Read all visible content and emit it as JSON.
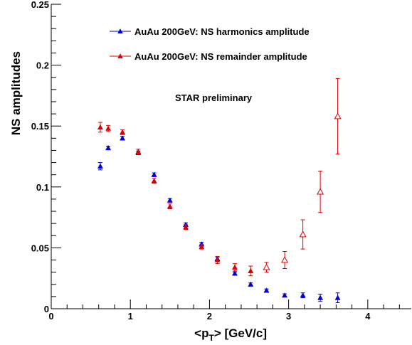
{
  "chart_data": {
    "type": "scatter",
    "xlabel": {
      "prefix": "<p",
      "sub": "T",
      "suffix": "> [GeV/c]"
    },
    "ylabel": "NS amplitudes",
    "xlim": [
      0,
      4.55
    ],
    "ylim": [
      0,
      0.25
    ],
    "x_ticks": [
      0,
      1,
      2,
      3,
      4
    ],
    "y_ticks": [
      0,
      0.05,
      0.1,
      0.15,
      0.2,
      0.25
    ],
    "y_tick_labels": [
      "0",
      "0.05",
      "0.1",
      "0.15",
      "0.2",
      "0.25"
    ],
    "grid": false,
    "legend_position": "top-center",
    "annotation": "STAR preliminary",
    "series": [
      {
        "name": "AuAu 200GeV: NS harmonics amplitude",
        "color": "#0000cc",
        "marker": "filled-triangle",
        "points": [
          {
            "x": 0.62,
            "y": 0.117,
            "err": 0.003
          },
          {
            "x": 0.72,
            "y": 0.132,
            "err": 0.0015
          },
          {
            "x": 0.9,
            "y": 0.14,
            "err": 0.0015
          },
          {
            "x": 1.1,
            "y": 0.128,
            "err": 0.0015
          },
          {
            "x": 1.3,
            "y": 0.11,
            "err": 0.0015
          },
          {
            "x": 1.5,
            "y": 0.089,
            "err": 0.0015
          },
          {
            "x": 1.7,
            "y": 0.069,
            "err": 0.0015
          },
          {
            "x": 1.9,
            "y": 0.053,
            "err": 0.0015
          },
          {
            "x": 2.1,
            "y": 0.041,
            "err": 0.0015
          },
          {
            "x": 2.32,
            "y": 0.029,
            "err": 0.0012
          },
          {
            "x": 2.52,
            "y": 0.02,
            "err": 0.0012
          },
          {
            "x": 2.72,
            "y": 0.015,
            "err": 0.0012
          },
          {
            "x": 2.95,
            "y": 0.011,
            "err": 0.0012
          },
          {
            "x": 3.18,
            "y": 0.011,
            "err": 0.002
          },
          {
            "x": 3.4,
            "y": 0.009,
            "err": 0.003
          },
          {
            "x": 3.62,
            "y": 0.009,
            "err": 0.004
          }
        ]
      },
      {
        "name": "AuAu 200GeV: NS remainder amplitude",
        "color": "#dd0000",
        "marker": "filled-triangle",
        "points": [
          {
            "x": 0.62,
            "y": 0.149,
            "err": 0.004,
            "open": false
          },
          {
            "x": 0.72,
            "y": 0.148,
            "err": 0.0025,
            "open": false
          },
          {
            "x": 0.9,
            "y": 0.145,
            "err": 0.002,
            "open": false
          },
          {
            "x": 1.1,
            "y": 0.129,
            "err": 0.002,
            "open": false
          },
          {
            "x": 1.3,
            "y": 0.105,
            "err": 0.002,
            "open": false
          },
          {
            "x": 1.5,
            "y": 0.084,
            "err": 0.002,
            "open": false
          },
          {
            "x": 1.7,
            "y": 0.067,
            "err": 0.002,
            "open": false
          },
          {
            "x": 1.9,
            "y": 0.051,
            "err": 0.002,
            "open": false
          },
          {
            "x": 2.1,
            "y": 0.04,
            "err": 0.003,
            "open": false
          },
          {
            "x": 2.32,
            "y": 0.034,
            "err": 0.003,
            "open": false
          },
          {
            "x": 2.52,
            "y": 0.031,
            "err": 0.004,
            "open": false
          },
          {
            "x": 2.72,
            "y": 0.034,
            "err": 0.004,
            "open": true
          },
          {
            "x": 2.95,
            "y": 0.04,
            "err": 0.007,
            "open": true
          },
          {
            "x": 3.18,
            "y": 0.061,
            "err": 0.012,
            "open": true
          },
          {
            "x": 3.4,
            "y": 0.096,
            "err": 0.017,
            "open": true
          },
          {
            "x": 3.62,
            "y": 0.158,
            "err": 0.031,
            "open": true
          }
        ]
      }
    ]
  }
}
